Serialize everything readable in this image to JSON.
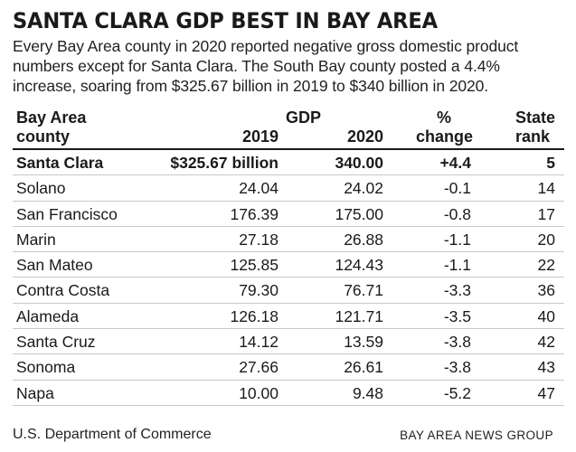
{
  "title": "SANTA CLARA GDP BEST IN BAY AREA",
  "description": "Every Bay Area county in 2020 reported negative gross domestic product numbers except for Santa Clara. The South Bay county posted a 4.4% increase, soaring from $325.67 billion in 2019 to $340 billion in 2020.",
  "chart_data": {
    "type": "table",
    "group_header": "GDP",
    "columns": {
      "county_line1": "Bay Area",
      "county_line2": "county",
      "y2019": "2019",
      "y2020": "2020",
      "pct_line1": "%",
      "pct_line2": "change",
      "rank_line1": "State",
      "rank_line2": "rank"
    },
    "rows": [
      {
        "county": "Santa Clara",
        "y2019": "$325.67 billion",
        "y2020": "340.00",
        "pct": "+4.4",
        "rank": "5"
      },
      {
        "county": "Solano",
        "y2019": "24.04",
        "y2020": "24.02",
        "pct": "-0.1",
        "rank": "14"
      },
      {
        "county": "San Francisco",
        "y2019": "176.39",
        "y2020": "175.00",
        "pct": "-0.8",
        "rank": "17"
      },
      {
        "county": "Marin",
        "y2019": "27.18",
        "y2020": "26.88",
        "pct": "-1.1",
        "rank": "20"
      },
      {
        "county": "San Mateo",
        "y2019": "125.85",
        "y2020": "124.43",
        "pct": "-1.1",
        "rank": "22"
      },
      {
        "county": "Contra Costa",
        "y2019": "79.30",
        "y2020": "76.71",
        "pct": "-3.3",
        "rank": "36"
      },
      {
        "county": "Alameda",
        "y2019": "126.18",
        "y2020": "121.71",
        "pct": "-3.5",
        "rank": "40"
      },
      {
        "county": "Santa Cruz",
        "y2019": "14.12",
        "y2020": "13.59",
        "pct": "-3.8",
        "rank": "42"
      },
      {
        "county": "Sonoma",
        "y2019": "27.66",
        "y2020": "26.61",
        "pct": "-3.8",
        "rank": "43"
      },
      {
        "county": "Napa",
        "y2019": "10.00",
        "y2020": "9.48",
        "pct": "-5.2",
        "rank": "47"
      }
    ]
  },
  "footer": {
    "source": "U.S. Department of Commerce",
    "credit": "BAY AREA NEWS GROUP"
  }
}
